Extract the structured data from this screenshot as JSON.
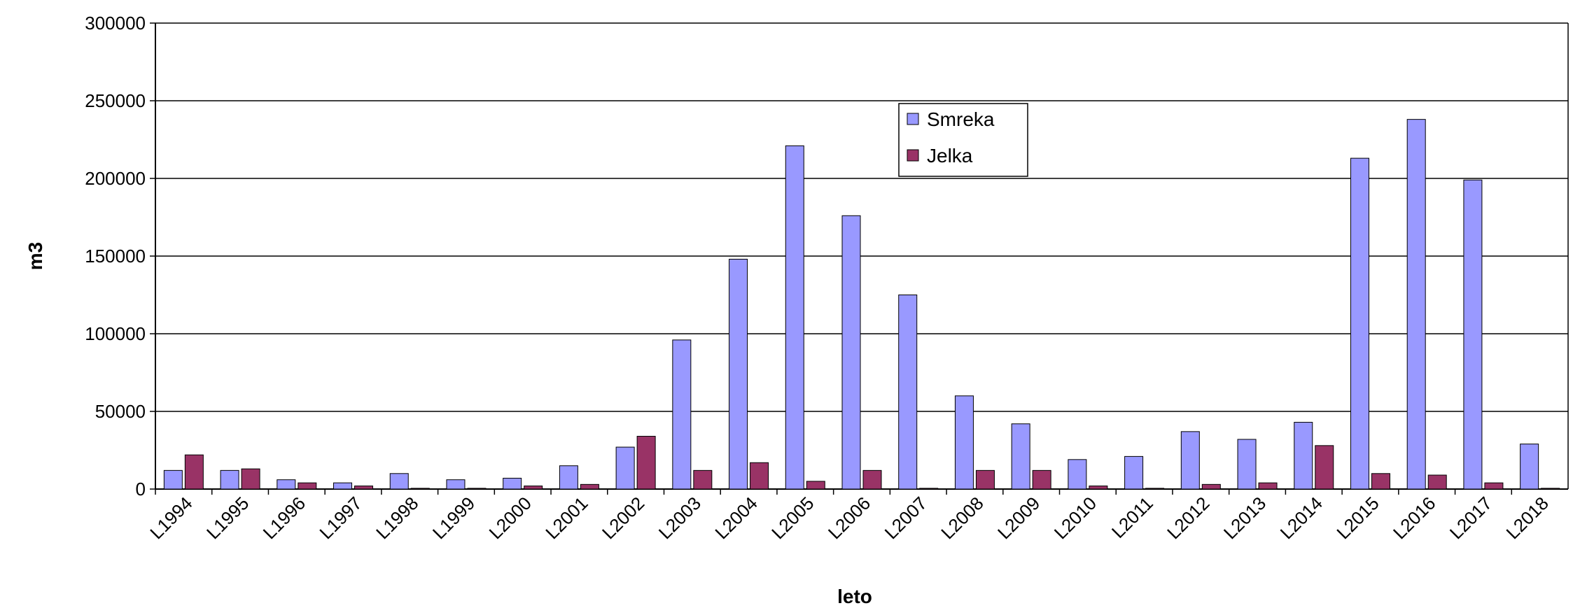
{
  "chart_data": {
    "type": "bar",
    "xlabel": "leto",
    "ylabel": "m3",
    "ylim": [
      0,
      300000
    ],
    "yticks": [
      0,
      50000,
      100000,
      150000,
      200000,
      250000,
      300000
    ],
    "grid": true,
    "legend_position": "top-center",
    "categories": [
      "L1994",
      "L1995",
      "L1996",
      "L1997",
      "L1998",
      "L1999",
      "L2000",
      "L2001",
      "L2002",
      "L2003",
      "L2004",
      "L2005",
      "L2006",
      "L2007",
      "L2008",
      "L2009",
      "L2010",
      "L2011",
      "L2012",
      "L2013",
      "L2014",
      "L2015",
      "L2016",
      "L2017",
      "L2018"
    ],
    "series": [
      {
        "name": "Smreka",
        "color": "#9999ff",
        "values": [
          12000,
          12000,
          6000,
          4000,
          10000,
          6000,
          7000,
          15000,
          27000,
          96000,
          148000,
          221000,
          176000,
          125000,
          60000,
          42000,
          19000,
          21000,
          37000,
          32000,
          43000,
          213000,
          238000,
          199000,
          29000
        ]
      },
      {
        "name": "Jelka",
        "color": "#993366",
        "values": [
          22000,
          13000,
          4000,
          2000,
          500,
          500,
          2000,
          3000,
          34000,
          12000,
          17000,
          5000,
          12000,
          500,
          12000,
          12000,
          2000,
          500,
          3000,
          4000,
          28000,
          10000,
          9000,
          4000,
          500
        ]
      }
    ]
  }
}
